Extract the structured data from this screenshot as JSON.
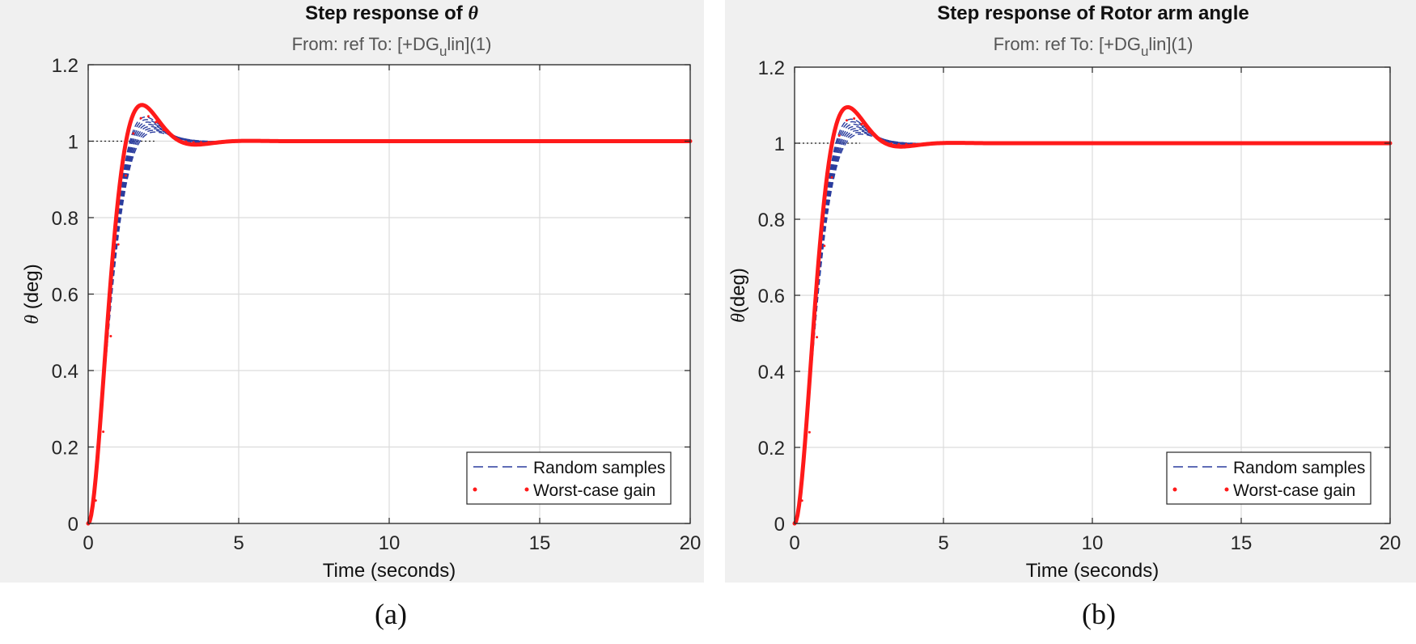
{
  "panels": [
    {
      "title_prefix": "Step response of ",
      "title_symbol": "θ",
      "subtitle_pre": "From: ref  To: [+DG",
      "subtitle_sub": "u",
      "subtitle_post": "lin](1)",
      "caption": "(a)"
    },
    {
      "title_prefix": "Step response of Rotor arm angle",
      "title_symbol": "",
      "subtitle_pre": "From: ref  To: [+DG",
      "subtitle_sub": "u",
      "subtitle_post": "lin](1)",
      "caption": "(b)"
    }
  ],
  "colors": {
    "random_samples": "#2b3d9e",
    "worst_case": "#ff1a1a",
    "grid": "#dcdcdc",
    "reference_line": "#222222"
  },
  "chart_data": [
    {
      "type": "line",
      "title": "Step response of θ",
      "subtitle": "From: ref  To: [+DGulin](1)",
      "xlabel": "Time (seconds)",
      "ylabel_symbol": "θ",
      "ylabel_text": " (deg)",
      "xlim": [
        0,
        20
      ],
      "ylim": [
        0,
        1.2
      ],
      "xticks": [
        "0",
        "5",
        "10",
        "15",
        "20"
      ],
      "yticks": [
        "0",
        "0.2",
        "0.4",
        "0.6",
        "0.8",
        "1",
        "1.2"
      ],
      "grid": true,
      "legend_position": "bottom-right",
      "legend": [
        "Random samples",
        "Worst-case gain"
      ],
      "reference_line_y": 1,
      "series": [
        {
          "name": "Random samples",
          "style": "dashed",
          "zeta": [
            0.66,
            0.675,
            0.69,
            0.705,
            0.72,
            0.735,
            0.75,
            0.765
          ],
          "omega_n": 2.2
        },
        {
          "name": "Worst-case gain",
          "style": "dotted-thick",
          "x": [
            0,
            0.25,
            0.5,
            0.75,
            1.0,
            1.25,
            1.5,
            1.75,
            2.0,
            2.25,
            2.5,
            2.75,
            3.0,
            3.25,
            3.5,
            3.75,
            4.0,
            4.5,
            5,
            6,
            8,
            10,
            12,
            14,
            16,
            18,
            20
          ],
          "y": [
            0,
            0.06,
            0.24,
            0.49,
            0.73,
            0.91,
            1.02,
            1.06,
            1.065,
            1.05,
            1.03,
            1.015,
            1.005,
            0.999,
            0.997,
            0.997,
            0.998,
            0.999,
            1.0,
            1.0,
            1.0,
            1.0,
            1.0,
            1.0,
            1.0,
            1.0,
            1.0
          ]
        }
      ]
    },
    {
      "type": "line",
      "title": "Step response of Rotor arm angle",
      "subtitle": "From: ref  To: [+DGulin](1)",
      "xlabel": "Time (seconds)",
      "ylabel_symbol": "θ",
      "ylabel_text": "(deg)",
      "xlim": [
        0,
        20
      ],
      "ylim": [
        0,
        1.2
      ],
      "xticks": [
        "0",
        "5",
        "10",
        "15",
        "20"
      ],
      "yticks": [
        "0",
        "0.2",
        "0.4",
        "0.6",
        "0.8",
        "1",
        "1.2"
      ],
      "grid": true,
      "legend_position": "bottom-right",
      "legend": [
        "Random samples",
        "Worst-case gain"
      ],
      "reference_line_y": 1,
      "series": [
        {
          "name": "Random samples",
          "style": "dashed",
          "zeta": [
            0.66,
            0.675,
            0.69,
            0.705,
            0.72,
            0.735,
            0.75,
            0.765
          ],
          "omega_n": 2.2
        },
        {
          "name": "Worst-case gain",
          "style": "dotted-thick",
          "x": [
            0,
            0.25,
            0.5,
            0.75,
            1.0,
            1.25,
            1.5,
            1.75,
            2.0,
            2.25,
            2.5,
            2.75,
            3.0,
            3.25,
            3.5,
            3.75,
            4.0,
            4.5,
            5,
            6,
            8,
            10,
            12,
            14,
            16,
            18,
            20
          ],
          "y": [
            0,
            0.06,
            0.24,
            0.49,
            0.73,
            0.91,
            1.02,
            1.06,
            1.065,
            1.05,
            1.03,
            1.015,
            1.005,
            0.999,
            0.997,
            0.997,
            0.998,
            0.999,
            1.0,
            1.0,
            1.0,
            1.0,
            1.0,
            1.0,
            1.0,
            1.0,
            1.0
          ]
        }
      ]
    }
  ]
}
